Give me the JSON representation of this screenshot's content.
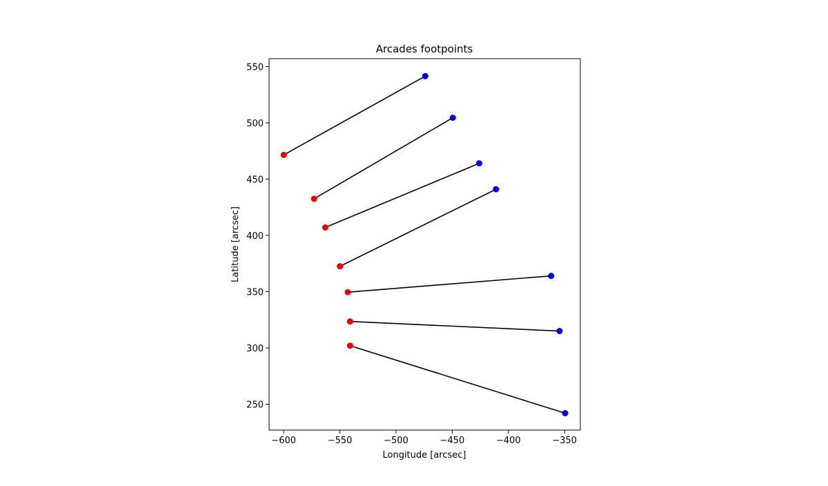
{
  "chart_data": {
    "type": "scatter",
    "title": "Arcades footpoints",
    "xlabel": "Longitude [arcsec]",
    "ylabel": "Latitude [arcsec]",
    "xlim": [
      -613,
      -336
    ],
    "ylim": [
      227,
      557
    ],
    "xticks": [
      -600,
      -550,
      -500,
      -450,
      -400,
      -350
    ],
    "yticks": [
      250,
      300,
      350,
      400,
      450,
      500,
      550
    ],
    "xtick_labels": [
      "−600",
      "−550",
      "−500",
      "−450",
      "−400",
      "−350"
    ],
    "ytick_labels": [
      "250",
      "300",
      "350",
      "400",
      "450",
      "500",
      "550"
    ],
    "grid": false,
    "colors": {
      "start": "#ee0000",
      "end": "#0000dd",
      "line": "#000000"
    },
    "pairs": [
      {
        "x": [
          -600,
          -474
        ],
        "y": [
          471.5,
          541.5
        ]
      },
      {
        "x": [
          -573,
          -449.5
        ],
        "y": [
          432.5,
          504.5
        ]
      },
      {
        "x": [
          -563,
          -426
        ],
        "y": [
          407,
          464
        ]
      },
      {
        "x": [
          -550,
          -411
        ],
        "y": [
          372.5,
          441
        ]
      },
      {
        "x": [
          -543,
          -362
        ],
        "y": [
          349.5,
          364
        ]
      },
      {
        "x": [
          -541,
          -354.5
        ],
        "y": [
          323.5,
          315
        ]
      },
      {
        "x": [
          -541,
          -349.5
        ],
        "y": [
          302,
          242
        ]
      }
    ]
  }
}
